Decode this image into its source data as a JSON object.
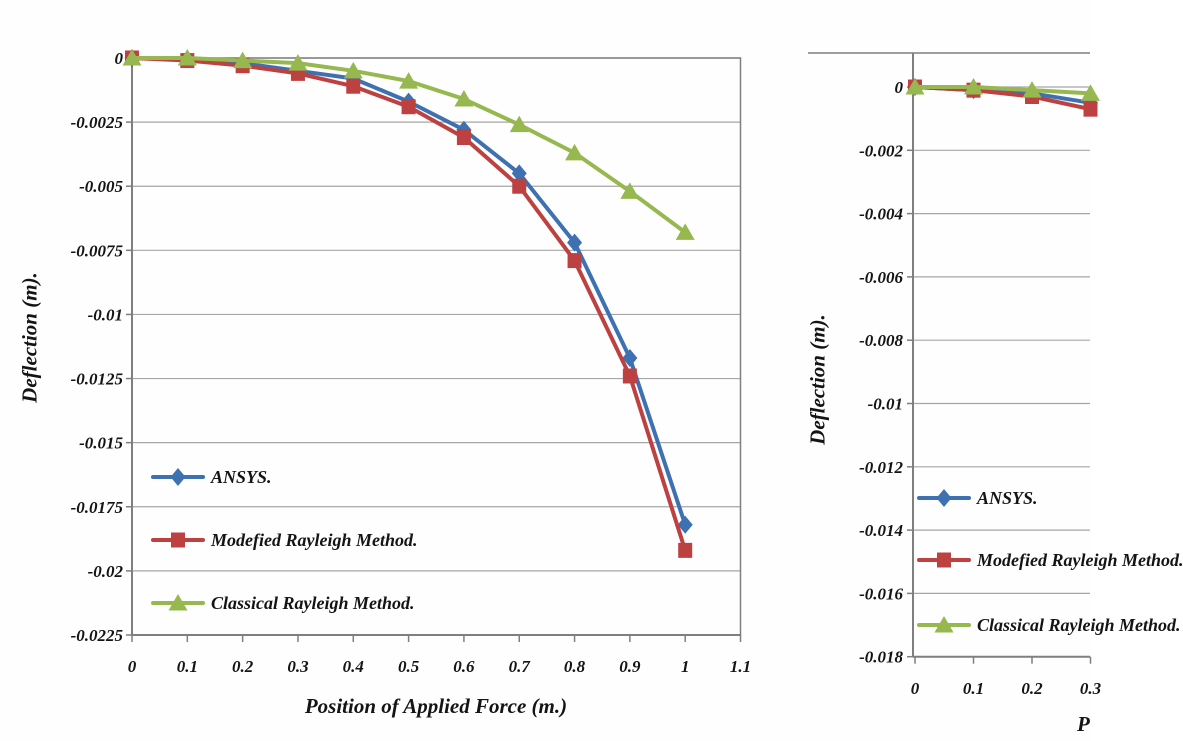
{
  "figure": {
    "description_colors": {
      "ansys_blue": "#3E71B2",
      "modefied_red": "#BE4141",
      "classical_green": "#96B84F",
      "grid_gray": "#A6A6A6",
      "axis_gray": "#7F7F7F",
      "text_black": "#141414"
    }
  },
  "chart_data": [
    {
      "type": "line",
      "title": "",
      "xlabel": "Position of Applied Force (m.)",
      "ylabel": "Deflection (m).",
      "x": [
        0,
        0.1,
        0.2,
        0.3,
        0.4,
        0.5,
        0.6,
        0.7,
        0.8,
        0.9,
        1.0
      ],
      "x_ticks": [
        "0",
        "0.1",
        "0.2",
        "0.3",
        "0.4",
        "0.5",
        "0.6",
        "0.7",
        "0.8",
        "0.9",
        "1",
        "1.1"
      ],
      "y_ticks": [
        "0",
        "-0.0025",
        "-0.005",
        "-0.0075",
        "-0.01",
        "-0.0125",
        "-0.015",
        "-0.0175",
        "-0.02",
        "-0.0225"
      ],
      "xlim": [
        0,
        1.1
      ],
      "ylim": [
        -0.0225,
        0
      ],
      "grid": "horizontal",
      "legend_position": "inside-lower-left",
      "series": [
        {
          "name": "ANSYS.",
          "color": "#3E71B2",
          "marker": "diamond",
          "values": [
            0,
            -5e-05,
            -0.0002,
            -0.0005,
            -0.0008,
            -0.0017,
            -0.0028,
            -0.0045,
            -0.0072,
            -0.0117,
            -0.0182
          ]
        },
        {
          "name": "Modefied Rayleigh Method.",
          "color": "#BE4141",
          "marker": "square",
          "values": [
            0,
            -0.0001,
            -0.0003,
            -0.0006,
            -0.0011,
            -0.0019,
            -0.0031,
            -0.005,
            -0.0079,
            -0.0124,
            -0.0192
          ]
        },
        {
          "name": "Classical Rayleigh Method.",
          "color": "#96B84F",
          "marker": "triangle",
          "values": [
            0,
            0,
            -0.0001,
            -0.0002,
            -0.0005,
            -0.0009,
            -0.0016,
            -0.0026,
            -0.0037,
            -0.0052,
            -0.0068
          ]
        }
      ]
    },
    {
      "type": "line",
      "title": "",
      "xlabel_visible": "P",
      "ylabel": "Deflection (m).",
      "x": [
        0,
        0.1,
        0.2,
        0.3
      ],
      "x_ticks": [
        "0",
        "0.1",
        "0.2",
        "0.3"
      ],
      "y_ticks": [
        "0",
        "-0.002",
        "-0.004",
        "-0.006",
        "-0.008",
        "-0.01",
        "-0.012",
        "-0.014",
        "-0.016",
        "-0.018"
      ],
      "xlim": [
        0,
        0.3
      ],
      "ylim": [
        -0.018,
        0.001
      ],
      "grid": "horizontal",
      "legend_position": "inside-lower-left",
      "clipped_at_right_edge": true,
      "series": [
        {
          "name": "ANSYS.",
          "color": "#3E71B2",
          "marker": "diamond",
          "values": [
            0,
            -0.0001,
            -0.0002,
            -0.0005
          ]
        },
        {
          "name": "Modefied Rayleigh Method.",
          "color": "#BE4141",
          "marker": "square",
          "values": [
            0,
            -0.0001,
            -0.0003,
            -0.0007
          ]
        },
        {
          "name": "Classical Rayleigh Method.",
          "color": "#96B84F",
          "marker": "triangle",
          "values": [
            0,
            0,
            -0.0001,
            -0.0002
          ]
        }
      ]
    }
  ]
}
